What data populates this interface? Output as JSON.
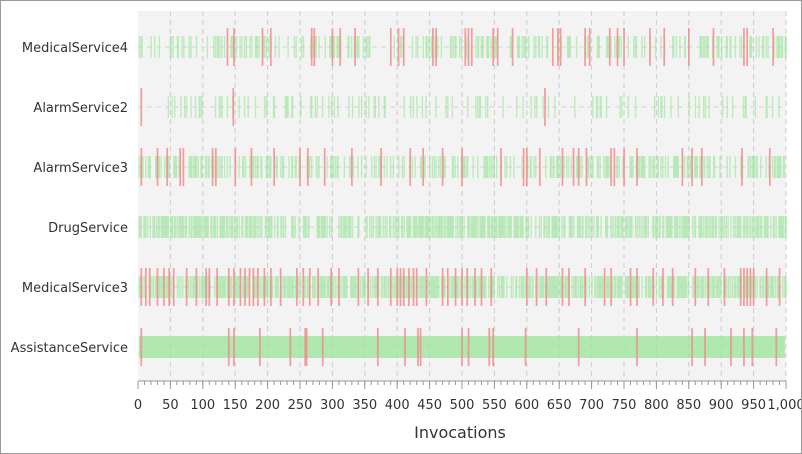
{
  "chart_data": {
    "type": "strip",
    "title": "",
    "xlabel": "Invocations",
    "ylabel": "",
    "xlim": [
      0,
      1000
    ],
    "xticks": [
      0,
      50,
      100,
      150,
      200,
      250,
      300,
      350,
      400,
      450,
      500,
      550,
      600,
      650,
      700,
      750,
      800,
      850,
      900,
      950,
      1000
    ],
    "xtick_labels": [
      "0",
      "50",
      "100",
      "150",
      "200",
      "250",
      "300",
      "350",
      "400",
      "450",
      "500",
      "550",
      "600",
      "650",
      "700",
      "750",
      "800",
      "850",
      "900",
      "950",
      "1,000"
    ],
    "categories": [
      "MedicalService4",
      "AlarmService2",
      "AlarmService3",
      "DrugService",
      "MedicalService3",
      "AssistanceService"
    ],
    "grid": true,
    "colors": {
      "success": "#9be39b",
      "failure": "#f28b8b",
      "plot_bg": "#f3f3f3",
      "grid": "#cccccc"
    },
    "series": [
      {
        "category": "MedicalService4",
        "success_density": 0.3,
        "failures": [
          138,
          148,
          192,
          205,
          268,
          272,
          300,
          312,
          335,
          390,
          402,
          410,
          455,
          460,
          505,
          510,
          515,
          548,
          555,
          578,
          640,
          648,
          652,
          690,
          697,
          728,
          740,
          750,
          790,
          812,
          850,
          888,
          935,
          940,
          980
        ]
      },
      {
        "category": "AlarmService2",
        "success_density": 0.15,
        "failures": [
          5,
          147,
          628
        ]
      },
      {
        "category": "AlarmService3",
        "success_density": 0.4,
        "failures": [
          5,
          30,
          45,
          65,
          70,
          115,
          120,
          150,
          175,
          210,
          250,
          262,
          288,
          330,
          375,
          420,
          440,
          470,
          500,
          560,
          595,
          600,
          620,
          655,
          672,
          680,
          692,
          730,
          735,
          750,
          770,
          840,
          855,
          870,
          932,
          975
        ]
      },
      {
        "category": "DrugService",
        "success_density": 0.6,
        "failures": []
      },
      {
        "category": "MedicalService3",
        "success_density": 0.7,
        "failures": [
          5,
          12,
          18,
          30,
          40,
          48,
          55,
          75,
          90,
          105,
          110,
          122,
          140,
          148,
          158,
          165,
          172,
          178,
          185,
          195,
          205,
          220,
          245,
          255,
          265,
          278,
          298,
          310,
          340,
          355,
          370,
          390,
          400,
          405,
          410,
          418,
          425,
          430,
          445,
          470,
          478,
          490,
          500,
          508,
          520,
          530,
          545,
          600,
          615,
          630,
          655,
          665,
          690,
          720,
          730,
          760,
          770,
          795,
          810,
          825,
          860,
          880,
          905,
          930,
          935,
          940,
          945,
          950,
          970,
          990
        ]
      },
      {
        "category": "AssistanceService",
        "success_density": 1.0,
        "failures": [
          5,
          140,
          148,
          188,
          235,
          258,
          260,
          285,
          370,
          412,
          432,
          436,
          500,
          510,
          542,
          548,
          598,
          680,
          770,
          855,
          875,
          915,
          935,
          948,
          985
        ]
      }
    ]
  }
}
